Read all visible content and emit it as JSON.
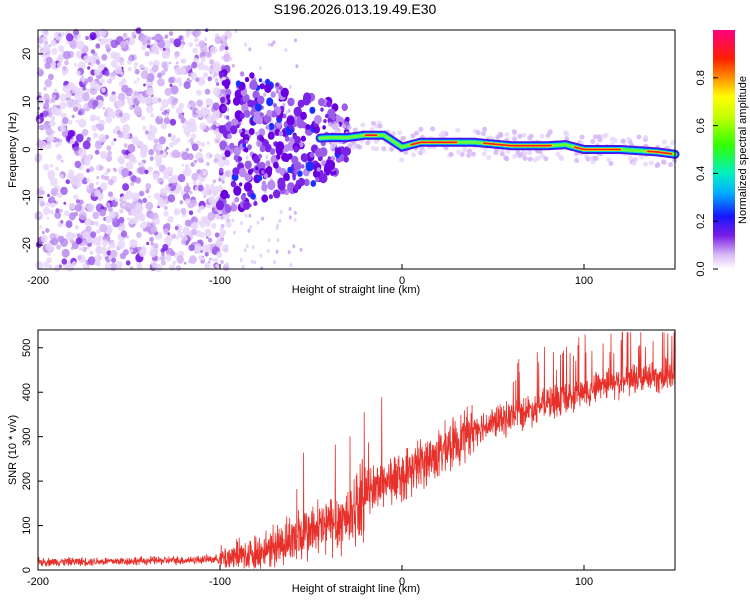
{
  "title": "S196.2026.013.19.49.E30",
  "chart_data": [
    {
      "type": "heatmap",
      "name": "spectrogram",
      "xlabel": "Height of straight line (km)",
      "ylabel": "Frequency (Hz)",
      "xlim": [
        -200,
        150
      ],
      "ylim": [
        -25,
        25
      ],
      "xticks": [
        -200,
        -100,
        0,
        100
      ],
      "yticks": [
        -20,
        -10,
        0,
        10,
        20
      ],
      "colorbar": {
        "label": "Normalized spectral amplitude",
        "range": [
          0,
          1
        ],
        "ticks": [
          0.0,
          0.2,
          0.4,
          0.6,
          0.8
        ],
        "tick_labels": [
          "0.0",
          "0.2",
          "0.4",
          "0.6",
          "0.8"
        ]
      },
      "ridge": {
        "description_points_x": [
          -100,
          -80,
          -60,
          -40,
          -30,
          -20,
          -10,
          0,
          10,
          20,
          40,
          60,
          80,
          90,
          100,
          120,
          140,
          150
        ],
        "description_points_y": [
          0.5,
          1,
          2,
          2.5,
          2.5,
          3,
          3,
          0.5,
          1.5,
          1.5,
          1.5,
          0.8,
          0.8,
          1.0,
          0.0,
          0.0,
          -0.5,
          -1.0
        ]
      }
    },
    {
      "type": "line",
      "name": "snr",
      "xlabel": "Height of straight line (km)",
      "ylabel": "SNR (10 * v/v)",
      "xlim": [
        -200,
        150
      ],
      "ylim": [
        0,
        540
      ],
      "xticks": [
        -200,
        -100,
        0,
        100
      ],
      "yticks": [
        0,
        100,
        200,
        300,
        400,
        500
      ],
      "color": "#e8302a",
      "trend": {
        "x": [
          -200,
          -150,
          -120,
          -100,
          -80,
          -60,
          -40,
          -30,
          -20,
          -10,
          0,
          10,
          20,
          30,
          40,
          50,
          60,
          70,
          80,
          90,
          100,
          110,
          120,
          130,
          140,
          150
        ],
        "y": [
          18,
          20,
          22,
          25,
          40,
          70,
          100,
          120,
          170,
          200,
          210,
          240,
          260,
          290,
          320,
          330,
          345,
          360,
          375,
          385,
          400,
          420,
          425,
          430,
          435,
          440
        ]
      }
    }
  ]
}
